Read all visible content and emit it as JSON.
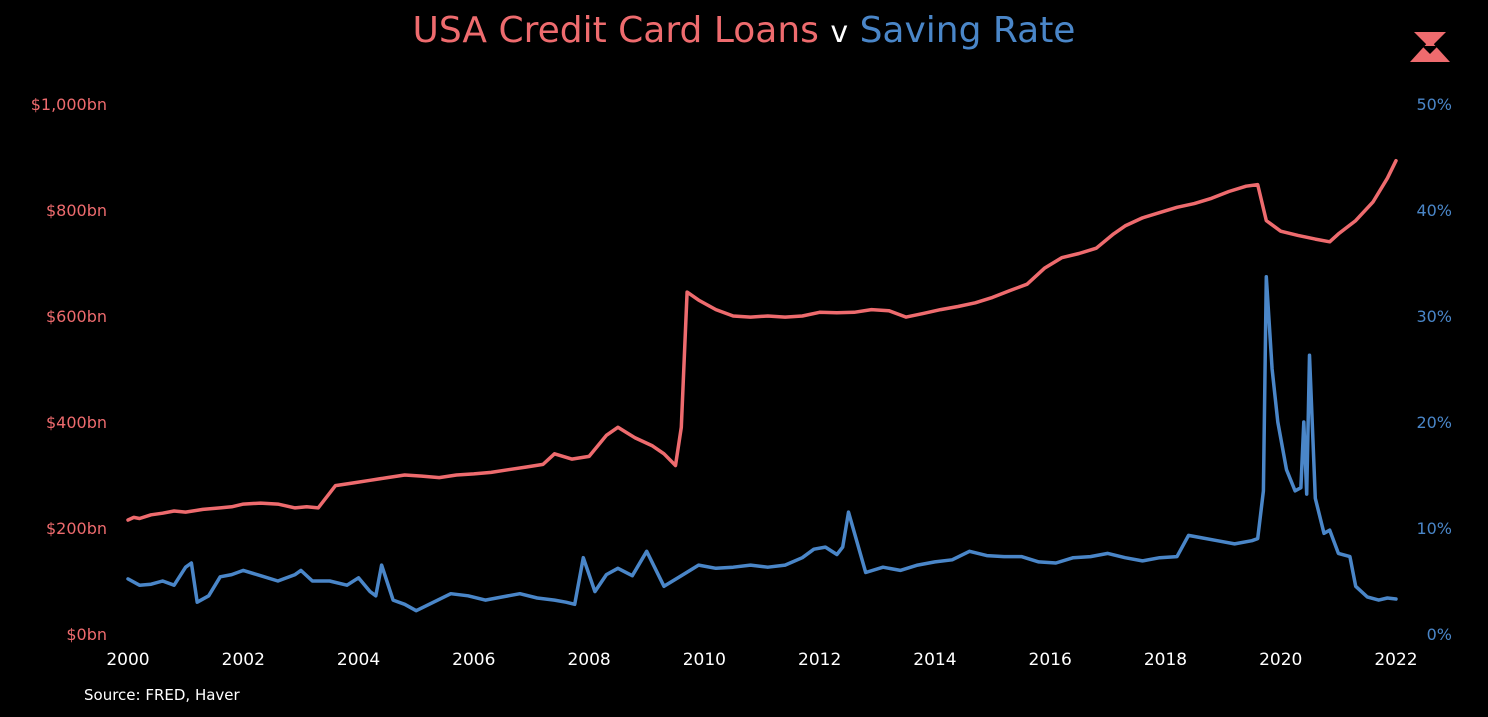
{
  "title": {
    "left": "USA Credit Card Loans",
    "middle": "v",
    "right": "Saving Rate"
  },
  "source": "Source: FRED, Haver",
  "colors": {
    "credit": "#ee6b6e",
    "saving": "#4a86c8",
    "background": "#000000",
    "text": "#ffffff"
  },
  "logo": "triangle-logo-icon",
  "chart_data": {
    "type": "line",
    "title": "USA Credit Card Loans v Saving Rate",
    "xlabel": "",
    "xlim": [
      2000,
      2022
    ],
    "x_ticks": [
      "2000",
      "2002",
      "2004",
      "2006",
      "2008",
      "2010",
      "2012",
      "2014",
      "2016",
      "2018",
      "2020",
      "2022"
    ],
    "y_left": {
      "ylim": [
        0,
        1000
      ],
      "ticks": [
        "$0bn",
        "$200bn",
        "$400bn",
        "$600bn",
        "$800bn",
        "$1,000bn"
      ]
    },
    "y_right": {
      "ylim": [
        0,
        50
      ],
      "ticks": [
        "0%",
        "10%",
        "20%",
        "30%",
        "40%",
        "50%"
      ]
    },
    "grid": false,
    "series": [
      {
        "name": "USA Credit Card Loans",
        "axis": "left",
        "unit": "$bn",
        "x": [
          2000,
          2000.1,
          2000.2,
          2000.4,
          2000.6,
          2000.8,
          2001.0,
          2001.3,
          2001.6,
          2001.8,
          2002.0,
          2002.3,
          2002.6,
          2002.9,
          2003.1,
          2003.3,
          2003.6,
          2003.9,
          2004.2,
          2004.5,
          2004.8,
          2005.1,
          2005.4,
          2005.7,
          2006.0,
          2006.3,
          2006.6,
          2006.9,
          2007.2,
          2007.4,
          2007.7,
          2008.0,
          2008.3,
          2008.5,
          2008.8,
          2009.1,
          2009.3,
          2009.5,
          2009.6,
          2009.7,
          2009.9,
          2010.2,
          2010.5,
          2010.8,
          2011.1,
          2011.4,
          2011.7,
          2012.0,
          2012.3,
          2012.6,
          2012.9,
          2013.2,
          2013.5,
          2013.8,
          2014.1,
          2014.4,
          2014.7,
          2015.0,
          2015.3,
          2015.6,
          2015.9,
          2016.2,
          2016.5,
          2016.8,
          2017.1,
          2017.3,
          2017.6,
          2017.9,
          2018.2,
          2018.5,
          2018.8,
          2019.1,
          2019.4,
          2019.6,
          2019.75,
          2020.0,
          2020.3,
          2020.6,
          2020.85,
          2021.0,
          2021.3,
          2021.6,
          2021.85,
          2022.0
        ],
        "values": [
          215,
          220,
          218,
          225,
          228,
          232,
          230,
          235,
          238,
          240,
          245,
          247,
          245,
          238,
          240,
          238,
          280,
          285,
          290,
          295,
          300,
          298,
          295,
          300,
          302,
          305,
          310,
          315,
          320,
          340,
          330,
          335,
          375,
          390,
          370,
          355,
          340,
          318,
          390,
          645,
          630,
          612,
          600,
          598,
          600,
          598,
          600,
          607,
          606,
          607,
          612,
          610,
          598,
          605,
          612,
          618,
          625,
          635,
          648,
          660,
          690,
          710,
          718,
          728,
          755,
          770,
          785,
          795,
          805,
          812,
          822,
          835,
          845,
          848,
          780,
          760,
          752,
          745,
          740,
          755,
          780,
          815,
          860,
          893
        ]
      },
      {
        "name": "Saving Rate",
        "axis": "right",
        "unit": "%",
        "x": [
          2000,
          2000.2,
          2000.4,
          2000.6,
          2000.8,
          2001.0,
          2001.1,
          2001.2,
          2001.4,
          2001.6,
          2001.8,
          2002.0,
          2002.3,
          2002.6,
          2002.9,
          2003.0,
          2003.2,
          2003.5,
          2003.8,
          2004.0,
          2004.2,
          2004.3,
          2004.4,
          2004.6,
          2004.8,
          2005.0,
          2005.3,
          2005.6,
          2005.9,
          2006.2,
          2006.5,
          2006.8,
          2007.1,
          2007.4,
          2007.6,
          2007.75,
          2007.9,
          2008.1,
          2008.3,
          2008.5,
          2008.75,
          2009.0,
          2009.3,
          2009.6,
          2009.9,
          2010.2,
          2010.5,
          2010.8,
          2011.1,
          2011.4,
          2011.7,
          2011.9,
          2012.1,
          2012.3,
          2012.4,
          2012.5,
          2012.8,
          2013.1,
          2013.4,
          2013.7,
          2014.0,
          2014.3,
          2014.6,
          2014.9,
          2015.2,
          2015.5,
          2015.8,
          2016.1,
          2016.4,
          2016.7,
          2017.0,
          2017.3,
          2017.6,
          2017.9,
          2018.2,
          2018.4,
          2018.6,
          2018.9,
          2019.2,
          2019.5,
          2019.6,
          2019.7,
          2019.75,
          2019.85,
          2019.95,
          2020.1,
          2020.25,
          2020.35,
          2020.4,
          2020.45,
          2020.5,
          2020.6,
          2020.75,
          2020.85,
          2021.0,
          2021.2,
          2021.3,
          2021.5,
          2021.7,
          2021.85,
          2022.0
        ],
        "values": [
          5.2,
          4.6,
          4.7,
          5.0,
          4.6,
          6.3,
          6.7,
          3.0,
          3.6,
          5.4,
          5.6,
          6.0,
          5.5,
          5.0,
          5.6,
          6.0,
          5.0,
          5.0,
          4.6,
          5.3,
          4.0,
          3.6,
          6.5,
          3.2,
          2.8,
          2.2,
          3.0,
          3.8,
          3.6,
          3.2,
          3.5,
          3.8,
          3.4,
          3.2,
          3.0,
          2.8,
          7.2,
          4.0,
          5.6,
          6.2,
          5.5,
          7.8,
          4.5,
          5.5,
          6.5,
          6.2,
          6.3,
          6.5,
          6.3,
          6.5,
          7.2,
          8.0,
          8.2,
          7.5,
          8.2,
          11.5,
          5.8,
          6.3,
          6.0,
          6.5,
          6.8,
          7.0,
          7.8,
          7.4,
          7.3,
          7.3,
          6.8,
          6.7,
          7.2,
          7.3,
          7.6,
          7.2,
          6.9,
          7.2,
          7.3,
          9.3,
          9.1,
          8.8,
          8.5,
          8.8,
          9.0,
          13.5,
          33.7,
          25.0,
          20.0,
          15.5,
          13.5,
          13.8,
          20.0,
          13.2,
          26.3,
          12.8,
          9.5,
          9.8,
          7.6,
          7.3,
          4.5,
          3.5,
          3.2,
          3.4,
          3.3
        ]
      }
    ]
  }
}
